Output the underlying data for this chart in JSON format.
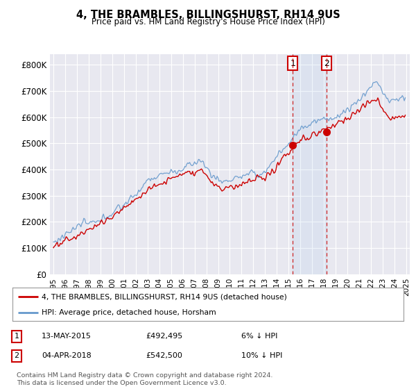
{
  "title": "4, THE BRAMBLES, BILLINGSHURST, RH14 9US",
  "subtitle": "Price paid vs. HM Land Registry's House Price Index (HPI)",
  "ylabel_ticks": [
    "£0",
    "£100K",
    "£200K",
    "£300K",
    "£400K",
    "£500K",
    "£600K",
    "£700K",
    "£800K"
  ],
  "ytick_values": [
    0,
    100000,
    200000,
    300000,
    400000,
    500000,
    600000,
    700000,
    800000
  ],
  "ylim": [
    0,
    840000
  ],
  "sale1": {
    "date": "13-MAY-2015",
    "price": 492495,
    "pct": "6%",
    "dir": "↓",
    "label": "1"
  },
  "sale2": {
    "date": "04-APR-2018",
    "price": 542500,
    "pct": "10%",
    "dir": "↓",
    "label": "2"
  },
  "sale1_x": 2015.36,
  "sale2_x": 2018.25,
  "legend_house": "4, THE BRAMBLES, BILLINGSHURST, RH14 9US (detached house)",
  "legend_hpi": "HPI: Average price, detached house, Horsham",
  "footnote": "Contains HM Land Registry data © Crown copyright and database right 2024.\nThis data is licensed under the Open Government Licence v3.0.",
  "house_color": "#cc0000",
  "hpi_color": "#6699cc",
  "background_color": "#ffffff",
  "plot_bg": "#e8e8f0"
}
